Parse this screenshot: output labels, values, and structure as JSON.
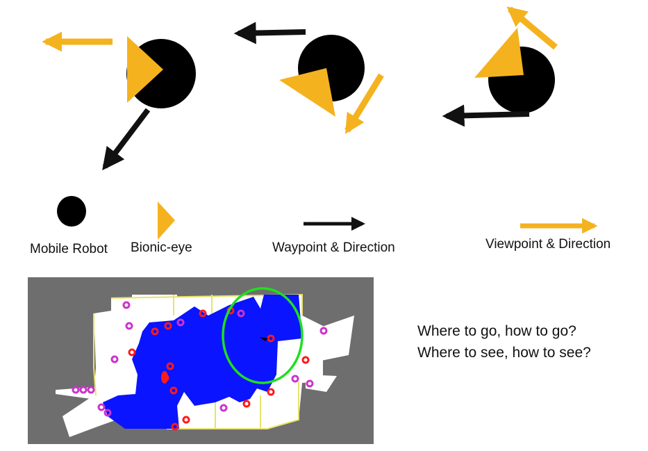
{
  "legend": {
    "mobile_robot": "Mobile Robot",
    "bionic_eye": "Bionic-eye",
    "waypoint": "Waypoint & Direction",
    "viewpoint": "Viewpoint & Direction"
  },
  "questions": {
    "line1": "Where to go, how to go?",
    "line2": "Where to see, how to see?"
  },
  "colors": {
    "robot": "#000000",
    "bionic_eye": "#f5b21f",
    "waypoint_arrow": "#111111",
    "viewpoint_arrow": "#f5b21f",
    "map_background": "#6e6e6e",
    "explored_area": "#0a14ff",
    "free_space": "#ffffff",
    "frontier_red": "#ff1a1a",
    "frontier_magenta": "#cc33cc",
    "focus_ring": "#1ee01e"
  }
}
